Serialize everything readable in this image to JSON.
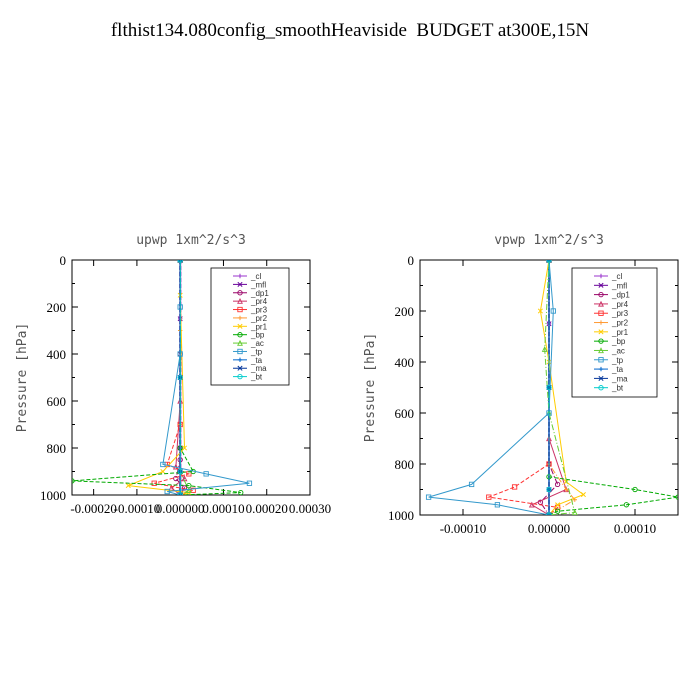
{
  "title": "flthist134.080config_smoothHeaviside  BUDGET at300E,15N",
  "chart_data": [
    {
      "type": "line",
      "title": "upwp  1xm^2/s^3",
      "ylabel": "Pressure [hPa]",
      "xlabel": "",
      "xlim": [
        -0.00025,
        0.0003
      ],
      "ylim": [
        1000,
        0
      ],
      "xticks": [
        -0.0002,
        -0.0001,
        0.0,
        0.0001,
        0.0002,
        0.0003
      ],
      "xtick_labels": [
        "-0.00020",
        "-0.00010",
        "0.000000",
        "0.00010",
        "0.00020",
        "0.00030"
      ],
      "yticks": [
        0,
        200,
        400,
        600,
        800,
        1000
      ],
      "ytick_labels": [
        "0",
        "200",
        "400",
        "600",
        "800",
        "1000"
      ],
      "legend_position": "top-right",
      "series": [
        {
          "name": "_cl",
          "color": "#9933cc",
          "x": [
            0,
            0,
            0,
            0,
            0
          ],
          "y": [
            0,
            250,
            500,
            800,
            1000
          ]
        },
        {
          "name": "_mfl",
          "color": "#660099",
          "x": [
            0,
            0,
            0,
            0,
            0
          ],
          "y": [
            0,
            250,
            500,
            800,
            1000
          ]
        },
        {
          "name": "_dp1",
          "color": "#990066",
          "x": [
            0,
            0,
            0,
            -1e-05,
            1e-05,
            0
          ],
          "y": [
            0,
            400,
            850,
            930,
            970,
            1000
          ]
        },
        {
          "name": "_pr4",
          "color": "#cc3366",
          "x": [
            0,
            0,
            -1e-05,
            1e-05,
            -2e-05,
            0
          ],
          "y": [
            0,
            600,
            880,
            930,
            970,
            1000
          ]
        },
        {
          "name": "_pr3",
          "color": "#ff3333",
          "x": [
            0,
            0,
            -3e-05,
            2e-05,
            -6e-05,
            3e-05,
            0
          ],
          "y": [
            0,
            700,
            870,
            910,
            950,
            980,
            1000
          ]
        },
        {
          "name": "_pr2",
          "color": "#ff9933",
          "x": [
            0,
            0,
            0,
            0,
            0
          ],
          "y": [
            0,
            300,
            700,
            900,
            1000
          ]
        },
        {
          "name": "_pr1",
          "color": "#ffcc00",
          "x": [
            0,
            0,
            1e-05,
            -4e-05,
            -0.00012,
            2e-05,
            0
          ],
          "y": [
            0,
            150,
            800,
            900,
            960,
            990,
            1000
          ]
        },
        {
          "name": "_bp",
          "color": "#00aa00",
          "x": [
            0,
            0,
            3e-05,
            -0.00025,
            2e-05,
            0.00014,
            0
          ],
          "y": [
            0,
            800,
            900,
            940,
            960,
            990,
            1000
          ]
        },
        {
          "name": "_ac",
          "color": "#66cc33",
          "x": [
            0,
            0,
            2e-05,
            0
          ],
          "y": [
            0,
            900,
            980,
            1000
          ]
        },
        {
          "name": "_tp",
          "color": "#3399cc",
          "x": [
            0,
            0,
            0,
            -4e-05,
            6e-05,
            0.00016,
            -3e-05,
            0
          ],
          "y": [
            0,
            200,
            400,
            870,
            910,
            950,
            985,
            1000
          ]
        },
        {
          "name": "_ta",
          "color": "#0066cc",
          "x": [
            0,
            0,
            0,
            0
          ],
          "y": [
            0,
            500,
            900,
            1000
          ]
        },
        {
          "name": "_ma",
          "color": "#003399",
          "x": [
            0,
            0,
            0,
            0
          ],
          "y": [
            0,
            500,
            900,
            1000
          ]
        },
        {
          "name": "_bt",
          "color": "#00cccc",
          "x": [
            0,
            0,
            0,
            0
          ],
          "y": [
            0,
            500,
            900,
            1000
          ]
        }
      ]
    },
    {
      "type": "line",
      "title": "vpwp  1xm^2/s^3",
      "ylabel": "Pressure [hPa]",
      "xlabel": "",
      "xlim": [
        -0.00015,
        0.00015
      ],
      "ylim": [
        1000,
        0
      ],
      "xticks": [
        -0.0001,
        0.0,
        0.0001
      ],
      "xtick_labels": [
        "-0.00010",
        "0.00000",
        "0.00010"
      ],
      "yticks": [
        0,
        200,
        400,
        600,
        800,
        1000
      ],
      "ytick_labels": [
        "0",
        "200",
        "400",
        "600",
        "800",
        "1000"
      ],
      "legend_position": "top-right",
      "series": [
        {
          "name": "_cl",
          "color": "#9933cc",
          "x": [
            0,
            0,
            0,
            0,
            0
          ],
          "y": [
            0,
            250,
            500,
            800,
            1000
          ]
        },
        {
          "name": "_mfl",
          "color": "#660099",
          "x": [
            0,
            0,
            0,
            0,
            0
          ],
          "y": [
            0,
            250,
            500,
            800,
            1000
          ]
        },
        {
          "name": "_dp1",
          "color": "#990066",
          "x": [
            0,
            0,
            1e-05,
            -1e-05,
            0
          ],
          "y": [
            0,
            800,
            880,
            950,
            1000
          ]
        },
        {
          "name": "_pr4",
          "color": "#cc3366",
          "x": [
            0,
            0,
            2e-05,
            -2e-05,
            0
          ],
          "y": [
            0,
            700,
            900,
            960,
            1000
          ]
        },
        {
          "name": "_pr3",
          "color": "#ff3333",
          "x": [
            0,
            0,
            -4e-05,
            -7e-05,
            1e-05,
            0
          ],
          "y": [
            0,
            800,
            890,
            930,
            970,
            1000
          ]
        },
        {
          "name": "_pr2",
          "color": "#ff9933",
          "x": [
            0,
            0,
            2e-05,
            3e-05,
            0
          ],
          "y": [
            0,
            800,
            900,
            940,
            1000
          ]
        },
        {
          "name": "_pr1",
          "color": "#ffcc00",
          "x": [
            0,
            -1e-05,
            0,
            2e-05,
            4e-05,
            1e-05,
            0
          ],
          "y": [
            0,
            200,
            400,
            870,
            920,
            960,
            1000
          ]
        },
        {
          "name": "_bp",
          "color": "#00aa00",
          "x": [
            0,
            0,
            0.0001,
            0.00015,
            9e-05,
            1e-05,
            0
          ],
          "y": [
            0,
            850,
            900,
            930,
            960,
            985,
            1000
          ]
        },
        {
          "name": "_ac",
          "color": "#66cc33",
          "x": [
            0,
            -5e-06,
            0,
            3e-05,
            0
          ],
          "y": [
            0,
            350,
            600,
            990,
            1000
          ]
        },
        {
          "name": "_tp",
          "color": "#3399cc",
          "x": [
            0,
            5e-06,
            0,
            -9e-05,
            -0.00014,
            -6e-05,
            0
          ],
          "y": [
            0,
            200,
            600,
            880,
            930,
            960,
            1000
          ]
        },
        {
          "name": "_ta",
          "color": "#0066cc",
          "x": [
            0,
            0,
            0,
            0
          ],
          "y": [
            0,
            500,
            900,
            1000
          ]
        },
        {
          "name": "_ma",
          "color": "#003399",
          "x": [
            0,
            0,
            0,
            0
          ],
          "y": [
            0,
            500,
            900,
            1000
          ]
        },
        {
          "name": "_bt",
          "color": "#00cccc",
          "x": [
            0,
            0,
            0,
            0
          ],
          "y": [
            0,
            500,
            900,
            1000
          ]
        }
      ]
    }
  ]
}
